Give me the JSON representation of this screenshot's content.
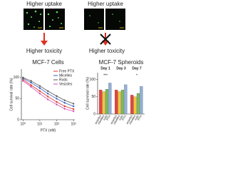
{
  "panels": {
    "left_uptake": "Higher uptake",
    "right_uptake": "Higher uptake",
    "left_toxicity": "Higher toxicity",
    "right_toxicity": "Higher toxicity"
  },
  "chart_data": [
    {
      "type": "line",
      "title": "MCF-7 Cells",
      "xlabel": "PTX (nM)",
      "ylabel": "Cell survival rate (%)",
      "x": [
        1,
        3,
        10,
        30,
        100,
        300,
        1000
      ],
      "log_x": true,
      "xlim": [
        0.8,
        1200
      ],
      "xticks": [
        {
          "value": 1,
          "label": "10⁰"
        },
        {
          "value": 10,
          "label": "10¹"
        },
        {
          "value": 100,
          "label": "10²"
        },
        {
          "value": 1000,
          "label": "10³"
        }
      ],
      "ylim": [
        0,
        120
      ],
      "yticks": [
        0,
        50,
        100
      ],
      "series": [
        {
          "name": "Free PTX",
          "color": "#e0302a",
          "values": [
            95,
            82,
            68,
            55,
            42,
            32,
            25
          ]
        },
        {
          "name": "Micelles",
          "color": "#2f5fbf",
          "values": [
            98,
            88,
            75,
            62,
            50,
            40,
            32
          ]
        },
        {
          "name": "Rods",
          "color": "#555555",
          "values": [
            100,
            92,
            80,
            68,
            56,
            46,
            38
          ]
        },
        {
          "name": "Vesicles",
          "color": "#d24fb0",
          "values": [
            92,
            78,
            62,
            48,
            36,
            26,
            20
          ]
        }
      ]
    },
    {
      "type": "bar",
      "title": "MCF-7 Spheroids",
      "ylabel": "Cell survival rate (%)",
      "categories": [
        "Day 1",
        "Day 3",
        "Day 7"
      ],
      "ylim": [
        0,
        120
      ],
      "yticks": [
        0,
        50,
        100
      ],
      "annotations": [
        "***",
        "*"
      ],
      "series": [
        {
          "name": "vesicles",
          "color": "#e8423b",
          "values": [
            70,
            70,
            55
          ]
        },
        {
          "name": "micelles",
          "color": "#f2c53d",
          "values": [
            65,
            65,
            50
          ]
        },
        {
          "name": "rods",
          "color": "#7dbb5c",
          "values": [
            72,
            70,
            60
          ]
        },
        {
          "name": "PTX",
          "color": "#8fb0d8",
          "values": [
            90,
            85,
            80
          ]
        }
      ]
    }
  ]
}
